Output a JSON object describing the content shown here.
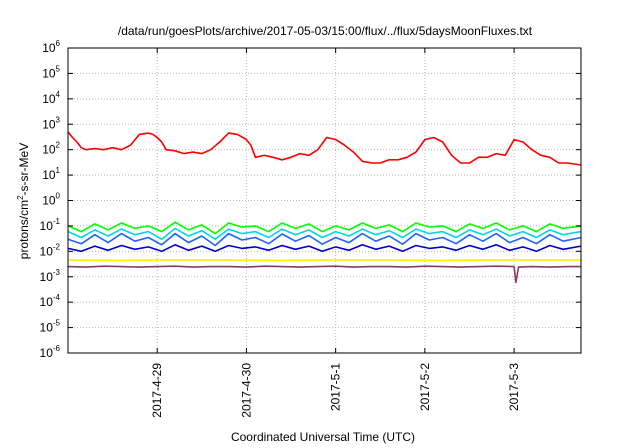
{
  "chart_data": {
    "type": "line",
    "title": "/data/run/goesPlots/archive/2017-05-03/15:00/flux/../flux/5daysMoonFluxes.txt",
    "xlabel": "Coordinated Universal Time (UTC)",
    "ylabel": "protons/cm²-s-sr-MeV",
    "ylabel_parts": {
      "pre": "protons/cm",
      "sup": "2",
      "post": "-s-sr-MeV"
    },
    "yscale": "log",
    "ylim_exp": [
      -6,
      6
    ],
    "xlim_days": [
      0,
      5.75
    ],
    "grid": true,
    "x_ticks": [
      {
        "label": "2017-4-29",
        "day": 1
      },
      {
        "label": "2017-4-30",
        "day": 2
      },
      {
        "label": "2017-5-1",
        "day": 3
      },
      {
        "label": "2017-5-2",
        "day": 4
      },
      {
        "label": "2017-5-3",
        "day": 5
      }
    ],
    "y_ticks": [
      {
        "base": "10",
        "exp": "-6",
        "value": -6
      },
      {
        "base": "10",
        "exp": "-5",
        "value": -5
      },
      {
        "base": "10",
        "exp": "-4",
        "value": -4
      },
      {
        "base": "10",
        "exp": "-3",
        "value": -3
      },
      {
        "base": "10",
        "exp": "-2",
        "value": -2
      },
      {
        "base": "10",
        "exp": "-1",
        "value": -1
      },
      {
        "base": "10",
        "exp": "0",
        "value": 0
      },
      {
        "base": "10",
        "exp": "1",
        "value": 1
      },
      {
        "base": "10",
        "exp": "2",
        "value": 2
      },
      {
        "base": "10",
        "exp": "3",
        "value": 3
      },
      {
        "base": "10",
        "exp": "4",
        "value": 4
      },
      {
        "base": "10",
        "exp": "5",
        "value": 5
      },
      {
        "base": "10",
        "exp": "6",
        "value": 6
      }
    ],
    "series": [
      {
        "color": "#ff0000",
        "x": [
          0,
          0.05,
          0.1,
          0.15,
          0.2,
          0.3,
          0.4,
          0.5,
          0.6,
          0.7,
          0.8,
          0.9,
          0.95,
          1.0,
          1.05,
          1.1,
          1.2,
          1.3,
          1.4,
          1.5,
          1.6,
          1.7,
          1.8,
          1.9,
          2.0,
          2.05,
          2.1,
          2.2,
          2.3,
          2.4,
          2.5,
          2.6,
          2.7,
          2.8,
          2.9,
          3.0,
          3.1,
          3.2,
          3.3,
          3.4,
          3.5,
          3.6,
          3.7,
          3.8,
          3.9,
          4.0,
          4.1,
          4.2,
          4.3,
          4.4,
          4.5,
          4.6,
          4.7,
          4.8,
          4.9,
          5.0,
          5.1,
          5.2,
          5.3,
          5.4,
          5.5,
          5.6,
          5.75
        ],
        "y": [
          500,
          300,
          200,
          120,
          100,
          110,
          100,
          120,
          100,
          150,
          400,
          450,
          400,
          300,
          200,
          100,
          90,
          70,
          80,
          70,
          100,
          200,
          450,
          400,
          250,
          150,
          50,
          60,
          50,
          40,
          50,
          70,
          60,
          100,
          300,
          250,
          150,
          80,
          35,
          30,
          30,
          40,
          40,
          50,
          80,
          250,
          300,
          200,
          60,
          30,
          30,
          50,
          50,
          70,
          60,
          250,
          200,
          100,
          60,
          50,
          30,
          30,
          25
        ]
      },
      {
        "color": "#00ff00",
        "x": [
          0,
          0.15,
          0.3,
          0.45,
          0.6,
          0.75,
          0.9,
          1.05,
          1.2,
          1.35,
          1.5,
          1.65,
          1.8,
          1.95,
          2.1,
          2.25,
          2.4,
          2.55,
          2.7,
          2.85,
          3.0,
          3.15,
          3.3,
          3.45,
          3.6,
          3.75,
          3.9,
          4.05,
          4.2,
          4.35,
          4.5,
          4.65,
          4.8,
          4.95,
          5.1,
          5.25,
          5.4,
          5.55,
          5.75
        ],
        "y": [
          0.1,
          0.06,
          0.12,
          0.07,
          0.13,
          0.08,
          0.1,
          0.06,
          0.14,
          0.07,
          0.11,
          0.05,
          0.13,
          0.09,
          0.1,
          0.06,
          0.13,
          0.08,
          0.12,
          0.06,
          0.1,
          0.07,
          0.13,
          0.08,
          0.11,
          0.06,
          0.13,
          0.09,
          0.1,
          0.06,
          0.12,
          0.08,
          0.13,
          0.07,
          0.1,
          0.06,
          0.12,
          0.08,
          0.1
        ]
      },
      {
        "color": "#00d7e6",
        "x": [
          0,
          0.15,
          0.3,
          0.45,
          0.6,
          0.75,
          0.9,
          1.05,
          1.2,
          1.35,
          1.5,
          1.65,
          1.8,
          1.95,
          2.1,
          2.25,
          2.4,
          2.55,
          2.7,
          2.85,
          3.0,
          3.15,
          3.3,
          3.45,
          3.6,
          3.75,
          3.9,
          4.05,
          4.2,
          4.35,
          4.5,
          4.65,
          4.8,
          4.95,
          5.1,
          5.25,
          5.4,
          5.55,
          5.75
        ],
        "y": [
          0.06,
          0.035,
          0.07,
          0.04,
          0.075,
          0.045,
          0.06,
          0.03,
          0.08,
          0.04,
          0.065,
          0.03,
          0.075,
          0.05,
          0.06,
          0.035,
          0.075,
          0.045,
          0.07,
          0.035,
          0.06,
          0.04,
          0.075,
          0.045,
          0.065,
          0.035,
          0.075,
          0.05,
          0.06,
          0.035,
          0.07,
          0.045,
          0.075,
          0.04,
          0.06,
          0.035,
          0.07,
          0.045,
          0.06
        ]
      },
      {
        "color": "#1e64ff",
        "x": [
          0,
          0.15,
          0.3,
          0.45,
          0.6,
          0.75,
          0.9,
          1.05,
          1.2,
          1.35,
          1.5,
          1.65,
          1.8,
          1.95,
          2.1,
          2.25,
          2.4,
          2.55,
          2.7,
          2.85,
          3.0,
          3.15,
          3.3,
          3.45,
          3.6,
          3.75,
          3.9,
          4.05,
          4.2,
          4.35,
          4.5,
          4.65,
          4.8,
          4.95,
          5.1,
          5.25,
          5.4,
          5.55,
          5.75
        ],
        "y": [
          0.03,
          0.02,
          0.045,
          0.022,
          0.05,
          0.025,
          0.035,
          0.018,
          0.05,
          0.022,
          0.04,
          0.017,
          0.05,
          0.028,
          0.035,
          0.02,
          0.048,
          0.025,
          0.042,
          0.019,
          0.035,
          0.022,
          0.05,
          0.025,
          0.04,
          0.019,
          0.05,
          0.028,
          0.035,
          0.02,
          0.045,
          0.025,
          0.05,
          0.022,
          0.035,
          0.02,
          0.045,
          0.025,
          0.035
        ]
      },
      {
        "color": "#0000cd",
        "x": [
          0,
          0.15,
          0.3,
          0.45,
          0.6,
          0.75,
          0.9,
          1.05,
          1.2,
          1.35,
          1.5,
          1.65,
          1.8,
          1.95,
          2.1,
          2.25,
          2.4,
          2.55,
          2.7,
          2.85,
          3.0,
          3.15,
          3.3,
          3.45,
          3.6,
          3.75,
          3.9,
          4.05,
          4.2,
          4.35,
          4.5,
          4.65,
          4.8,
          4.95,
          5.1,
          5.25,
          5.4,
          5.55,
          5.75
        ],
        "y": [
          0.013,
          0.01,
          0.016,
          0.011,
          0.017,
          0.012,
          0.015,
          0.01,
          0.018,
          0.011,
          0.016,
          0.01,
          0.017,
          0.013,
          0.015,
          0.011,
          0.017,
          0.012,
          0.016,
          0.01,
          0.015,
          0.011,
          0.018,
          0.012,
          0.016,
          0.01,
          0.017,
          0.013,
          0.015,
          0.011,
          0.017,
          0.012,
          0.018,
          0.011,
          0.015,
          0.01,
          0.017,
          0.012,
          0.016
        ]
      },
      {
        "color": "#ffee00",
        "x": [
          0,
          0.6,
          1.2,
          1.8,
          2.4,
          3.0,
          3.6,
          4.2,
          4.8,
          5.4,
          5.75
        ],
        "y": [
          0.0045,
          0.0044,
          0.0046,
          0.0045,
          0.0044,
          0.0046,
          0.0045,
          0.0044,
          0.0046,
          0.0045,
          0.0045
        ]
      },
      {
        "color": "#8b3a62",
        "x": [
          0,
          0.2,
          0.4,
          0.6,
          0.8,
          1.0,
          1.2,
          1.4,
          1.6,
          1.8,
          2.0,
          2.2,
          2.4,
          2.6,
          2.8,
          3.0,
          3.2,
          3.4,
          3.6,
          3.8,
          4.0,
          4.2,
          4.4,
          4.6,
          4.8,
          5.0,
          5.02,
          5.05,
          5.2,
          5.4,
          5.6,
          5.75
        ],
        "y": [
          0.0025,
          0.0024,
          0.0026,
          0.0025,
          0.0024,
          0.0025,
          0.0026,
          0.0024,
          0.0025,
          0.0025,
          0.0024,
          0.0026,
          0.0025,
          0.0024,
          0.0025,
          0.0026,
          0.0024,
          0.0025,
          0.0025,
          0.0024,
          0.0026,
          0.0025,
          0.0024,
          0.0025,
          0.0026,
          0.0025,
          0.0006,
          0.0024,
          0.0025,
          0.0024,
          0.0025,
          0.0025
        ]
      }
    ]
  }
}
